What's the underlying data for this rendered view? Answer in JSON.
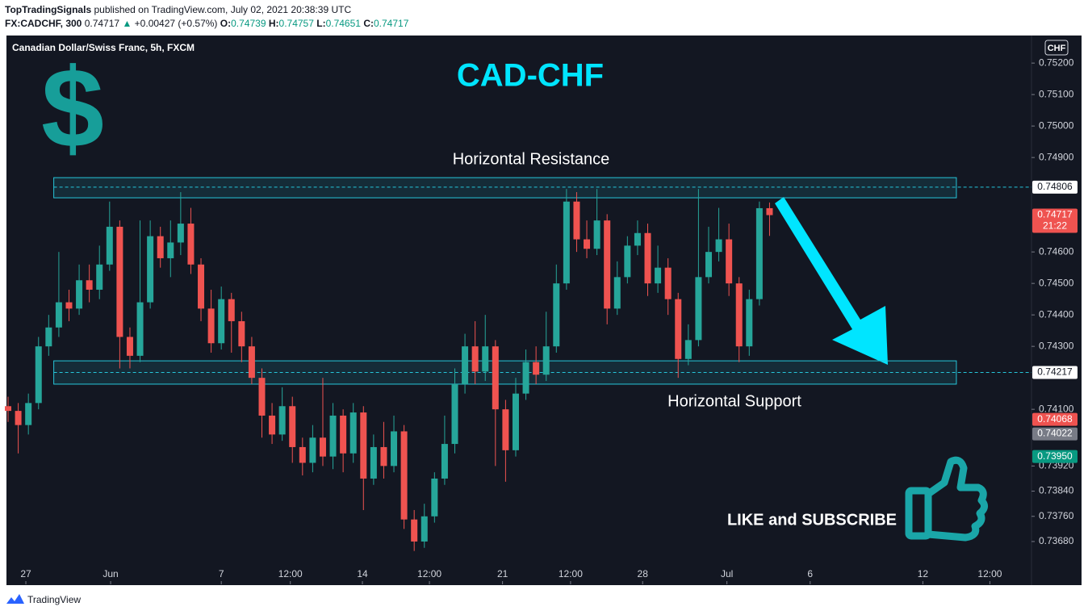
{
  "header": {
    "publisher": "TopTradingSignals",
    "published": "published on TradingView.com, July 02, 2021 20:38:39 UTC",
    "symbol": "FX:CADCHF, 300",
    "last": "0.74717",
    "change_arrow": "▲",
    "change": "+0.00427 (+0.57%)",
    "ohlc": [
      {
        "label": "O:",
        "value": "0.74739"
      },
      {
        "label": "H:",
        "value": "0.74757"
      },
      {
        "label": "L:",
        "value": "0.74651"
      },
      {
        "label": "C:",
        "value": "0.74717"
      }
    ]
  },
  "footer": {
    "brand": "TradingView"
  },
  "chart_data": {
    "type": "candlestick",
    "legend_text": "Canadian Dollar/Swiss Franc, 5h, FXCM",
    "title": "CAD-CHF",
    "currency": "CHF",
    "symbol_icon": "$",
    "up_color": "#26a69a",
    "down_color": "#ef5350",
    "candles": [
      {
        "open": 0.7411,
        "high": 0.7414,
        "low": 0.7406,
        "close": 0.74095
      },
      {
        "open": 0.74095,
        "high": 0.7412,
        "low": 0.7396,
        "close": 0.7405
      },
      {
        "open": 0.7405,
        "high": 0.7415,
        "low": 0.7402,
        "close": 0.7412
      },
      {
        "open": 0.7412,
        "high": 0.7433,
        "low": 0.741,
        "close": 0.743
      },
      {
        "open": 0.743,
        "high": 0.744,
        "low": 0.7427,
        "close": 0.7436
      },
      {
        "open": 0.7436,
        "high": 0.746,
        "low": 0.7433,
        "close": 0.7444
      },
      {
        "open": 0.7444,
        "high": 0.7448,
        "low": 0.7438,
        "close": 0.7442
      },
      {
        "open": 0.7442,
        "high": 0.7456,
        "low": 0.744,
        "close": 0.7451
      },
      {
        "open": 0.7451,
        "high": 0.7456,
        "low": 0.7444,
        "close": 0.7448
      },
      {
        "open": 0.7448,
        "high": 0.7462,
        "low": 0.7445,
        "close": 0.7456
      },
      {
        "open": 0.7456,
        "high": 0.7476,
        "low": 0.7454,
        "close": 0.7468
      },
      {
        "open": 0.7468,
        "high": 0.747,
        "low": 0.7423,
        "close": 0.7433
      },
      {
        "open": 0.7433,
        "high": 0.7436,
        "low": 0.7423,
        "close": 0.7427
      },
      {
        "open": 0.7427,
        "high": 0.747,
        "low": 0.7425,
        "close": 0.7444
      },
      {
        "open": 0.7444,
        "high": 0.747,
        "low": 0.7442,
        "close": 0.7465
      },
      {
        "open": 0.7465,
        "high": 0.7468,
        "low": 0.7455,
        "close": 0.7458
      },
      {
        "open": 0.7458,
        "high": 0.747,
        "low": 0.7452,
        "close": 0.7463
      },
      {
        "open": 0.7463,
        "high": 0.7479,
        "low": 0.7459,
        "close": 0.7469
      },
      {
        "open": 0.7469,
        "high": 0.7474,
        "low": 0.7453,
        "close": 0.7456
      },
      {
        "open": 0.7456,
        "high": 0.7458,
        "low": 0.7438,
        "close": 0.7442
      },
      {
        "open": 0.7442,
        "high": 0.7448,
        "low": 0.7428,
        "close": 0.7431
      },
      {
        "open": 0.7431,
        "high": 0.7449,
        "low": 0.7429,
        "close": 0.7445
      },
      {
        "open": 0.7445,
        "high": 0.7447,
        "low": 0.7428,
        "close": 0.7438
      },
      {
        "open": 0.7438,
        "high": 0.7441,
        "low": 0.7425,
        "close": 0.743
      },
      {
        "open": 0.743,
        "high": 0.7433,
        "low": 0.7418,
        "close": 0.742
      },
      {
        "open": 0.742,
        "high": 0.7423,
        "low": 0.7401,
        "close": 0.7408
      },
      {
        "open": 0.7408,
        "high": 0.7412,
        "low": 0.7399,
        "close": 0.7402
      },
      {
        "open": 0.7402,
        "high": 0.7417,
        "low": 0.74,
        "close": 0.7411
      },
      {
        "open": 0.7411,
        "high": 0.7414,
        "low": 0.7393,
        "close": 0.7398
      },
      {
        "open": 0.7398,
        "high": 0.7401,
        "low": 0.7389,
        "close": 0.7393
      },
      {
        "open": 0.7393,
        "high": 0.7405,
        "low": 0.739,
        "close": 0.7401
      },
      {
        "open": 0.7401,
        "high": 0.742,
        "low": 0.7392,
        "close": 0.7395
      },
      {
        "open": 0.7395,
        "high": 0.7412,
        "low": 0.7391,
        "close": 0.7408
      },
      {
        "open": 0.7408,
        "high": 0.741,
        "low": 0.739,
        "close": 0.7396
      },
      {
        "open": 0.7396,
        "high": 0.7412,
        "low": 0.7393,
        "close": 0.7409
      },
      {
        "open": 0.7409,
        "high": 0.7411,
        "low": 0.7378,
        "close": 0.7388
      },
      {
        "open": 0.7388,
        "high": 0.7402,
        "low": 0.7386,
        "close": 0.7398
      },
      {
        "open": 0.7398,
        "high": 0.7406,
        "low": 0.7388,
        "close": 0.7392
      },
      {
        "open": 0.7392,
        "high": 0.7408,
        "low": 0.739,
        "close": 0.7403
      },
      {
        "open": 0.7403,
        "high": 0.7405,
        "low": 0.7372,
        "close": 0.7375
      },
      {
        "open": 0.7375,
        "high": 0.7378,
        "low": 0.7365,
        "close": 0.7368
      },
      {
        "open": 0.7368,
        "high": 0.738,
        "low": 0.7366,
        "close": 0.7376
      },
      {
        "open": 0.7376,
        "high": 0.739,
        "low": 0.7374,
        "close": 0.7388
      },
      {
        "open": 0.7388,
        "high": 0.7408,
        "low": 0.7386,
        "close": 0.7399
      },
      {
        "open": 0.7399,
        "high": 0.7423,
        "low": 0.7396,
        "close": 0.7418
      },
      {
        "open": 0.7418,
        "high": 0.7434,
        "low": 0.7415,
        "close": 0.743
      },
      {
        "open": 0.743,
        "high": 0.7438,
        "low": 0.7418,
        "close": 0.7422
      },
      {
        "open": 0.7422,
        "high": 0.744,
        "low": 0.7419,
        "close": 0.743
      },
      {
        "open": 0.743,
        "high": 0.7432,
        "low": 0.7392,
        "close": 0.741
      },
      {
        "open": 0.741,
        "high": 0.7413,
        "low": 0.7387,
        "close": 0.7397
      },
      {
        "open": 0.7397,
        "high": 0.742,
        "low": 0.7395,
        "close": 0.7415
      },
      {
        "open": 0.7415,
        "high": 0.7429,
        "low": 0.7413,
        "close": 0.7425
      },
      {
        "open": 0.7425,
        "high": 0.743,
        "low": 0.7418,
        "close": 0.7421
      },
      {
        "open": 0.7421,
        "high": 0.7441,
        "low": 0.7419,
        "close": 0.743
      },
      {
        "open": 0.743,
        "high": 0.7456,
        "low": 0.7428,
        "close": 0.745
      },
      {
        "open": 0.745,
        "high": 0.748,
        "low": 0.7448,
        "close": 0.7476
      },
      {
        "open": 0.7476,
        "high": 0.7479,
        "low": 0.746,
        "close": 0.7464
      },
      {
        "open": 0.7464,
        "high": 0.747,
        "low": 0.7458,
        "close": 0.7461
      },
      {
        "open": 0.7461,
        "high": 0.748,
        "low": 0.7459,
        "close": 0.747
      },
      {
        "open": 0.747,
        "high": 0.7472,
        "low": 0.7437,
        "close": 0.7442
      },
      {
        "open": 0.7442,
        "high": 0.7457,
        "low": 0.744,
        "close": 0.7452
      },
      {
        "open": 0.7452,
        "high": 0.7465,
        "low": 0.745,
        "close": 0.7462
      },
      {
        "open": 0.7462,
        "high": 0.747,
        "low": 0.7459,
        "close": 0.7466
      },
      {
        "open": 0.7466,
        "high": 0.7469,
        "low": 0.7446,
        "close": 0.745
      },
      {
        "open": 0.745,
        "high": 0.7462,
        "low": 0.7447,
        "close": 0.7455
      },
      {
        "open": 0.7455,
        "high": 0.7458,
        "low": 0.744,
        "close": 0.7445
      },
      {
        "open": 0.7445,
        "high": 0.7447,
        "low": 0.742,
        "close": 0.7426
      },
      {
        "open": 0.7426,
        "high": 0.7437,
        "low": 0.7424,
        "close": 0.7432
      },
      {
        "open": 0.7432,
        "high": 0.748,
        "low": 0.743,
        "close": 0.7452
      },
      {
        "open": 0.7452,
        "high": 0.7468,
        "low": 0.745,
        "close": 0.746
      },
      {
        "open": 0.746,
        "high": 0.7474,
        "low": 0.7457,
        "close": 0.7464
      },
      {
        "open": 0.7464,
        "high": 0.7469,
        "low": 0.7446,
        "close": 0.745
      },
      {
        "open": 0.745,
        "high": 0.7452,
        "low": 0.7425,
        "close": 0.743
      },
      {
        "open": 0.743,
        "high": 0.7448,
        "low": 0.7427,
        "close": 0.7445
      },
      {
        "open": 0.7445,
        "high": 0.7476,
        "low": 0.7443,
        "close": 0.74739
      },
      {
        "open": 0.74739,
        "high": 0.74757,
        "low": 0.74651,
        "close": 0.74717
      }
    ],
    "xlim": [
      -0.16,
      100.8
    ],
    "xticks": [
      {
        "value": 1.75,
        "label": "27"
      },
      {
        "value": 10.1,
        "label": "Jun"
      },
      {
        "value": 21,
        "label": "7"
      },
      {
        "value": 27.8,
        "label": "12:00"
      },
      {
        "value": 34.9,
        "label": "14"
      },
      {
        "value": 41.5,
        "label": "12:00"
      },
      {
        "value": 48.7,
        "label": "21"
      },
      {
        "value": 55.4,
        "label": "12:00"
      },
      {
        "value": 62.5,
        "label": "28"
      },
      {
        "value": 70.8,
        "label": "Jul"
      },
      {
        "value": 79,
        "label": "6"
      },
      {
        "value": 90.1,
        "label": "12"
      },
      {
        "value": 96.7,
        "label": "12:00"
      }
    ],
    "ylim": [
      0.73544,
      0.75285
    ],
    "yticks": [
      {
        "value": 0.752,
        "label": "0.75200"
      },
      {
        "value": 0.751,
        "label": "0.75100"
      },
      {
        "value": 0.75,
        "label": "0.75000"
      },
      {
        "value": 0.749,
        "label": "0.74900"
      },
      {
        "value": 0.746,
        "label": "0.74600"
      },
      {
        "value": 0.745,
        "label": "0.74500"
      },
      {
        "value": 0.744,
        "label": "0.74400"
      },
      {
        "value": 0.743,
        "label": "0.74300"
      },
      {
        "value": 0.741,
        "label": "0.74100"
      },
      {
        "value": 0.7392,
        "label": "0.73920"
      },
      {
        "value": 0.7384,
        "label": "0.73840"
      },
      {
        "value": 0.7376,
        "label": "0.73760"
      },
      {
        "value": 0.7368,
        "label": "0.73680"
      }
    ],
    "grid": false,
    "zones": [
      {
        "name": "Horizontal Resistance",
        "top": 0.74836,
        "bottom": 0.74772,
        "level": 0.74806,
        "x_start": 4.5,
        "x_end": 93.4,
        "color": "#26c6da"
      },
      {
        "name": "Horizontal Support",
        "top": 0.74254,
        "bottom": 0.7418,
        "level": 0.74217,
        "x_start": 4.5,
        "x_end": 93.4,
        "color": "#26c6da"
      }
    ],
    "price_markers": [
      {
        "value": 0.74806,
        "color": "#ffffff",
        "text_color": "#131722"
      },
      {
        "value": 0.74717,
        "color": "#ef5350",
        "text_color": "#ffffff",
        "countdown": "21:22"
      },
      {
        "value": 0.74217,
        "color": "#ffffff",
        "text_color": "#131722"
      },
      {
        "value": 0.74068,
        "color": "#ef5350",
        "text_color": "#ffffff"
      },
      {
        "value": 0.74022,
        "color": "#787b86",
        "text_color": "#ffffff"
      },
      {
        "value": 0.7395,
        "label": "0.73950",
        "color": "#089981",
        "text_color": "#ffffff"
      }
    ],
    "annotations": [
      {
        "text": "LIKE and SUBSCRIBE"
      }
    ]
  }
}
